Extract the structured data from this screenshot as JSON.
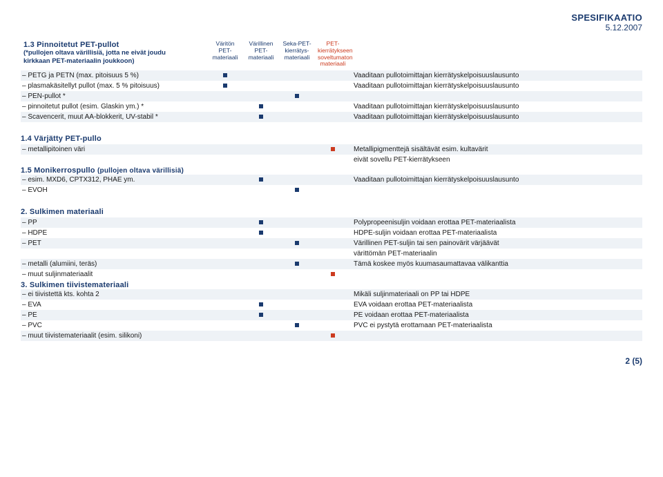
{
  "header": {
    "title": "SPESIFIKAATIO",
    "date": "5.12.2007"
  },
  "colors": {
    "blue": "#1a3a6e",
    "red": "#cc3b1f",
    "stripe": "#eef2f6",
    "bg": "#ffffff"
  },
  "column_headers": {
    "col1": "Väritön\nPET-\nmateriaali",
    "col2": "Värillinen\nPET-\nmateriaali",
    "col3": "Seka-PET-\nkierrätys-\nmateriaali",
    "col4": "PET-\nkierrätykseen\nsoveltumaton\nmateriaali"
  },
  "section13": {
    "title": "1.3 Pinnoitetut PET-pullot",
    "desc_line1": "(*pullojen oltava värillisiä, jotta ne eivät joudu",
    "desc_line2": "kirkkaan PET-materiaalin joukkoon)",
    "rows": [
      {
        "label": "– PETG ja PETN (max. pitoisuus 5 %)",
        "mark_col": 1,
        "mark_color": "blue",
        "note": "Vaaditaan pullotoimittajan kierrätyskelpoisuuslausunto"
      },
      {
        "label": "– plasmakäsitellyt pullot (max. 5 % pitoisuus)",
        "mark_col": 1,
        "mark_color": "blue",
        "note": "Vaaditaan pullotoimittajan kierrätyskelpoisuuslausunto"
      },
      {
        "label": "– PEN-pullot *",
        "mark_col": 3,
        "mark_color": "blue",
        "note": ""
      },
      {
        "label": "– pinnoitetut pullot (esim. Glaskin ym.) *",
        "mark_col": 2,
        "mark_color": "blue",
        "note": "Vaaditaan pullotoimittajan kierrätyskelpoisuuslausunto"
      },
      {
        "label": "– Scavencerit, muut AA-blokkerit, UV-stabil *",
        "mark_col": 2,
        "mark_color": "blue",
        "note": "Vaaditaan pullotoimittajan kierrätyskelpoisuuslausunto"
      }
    ]
  },
  "section14": {
    "title": "1.4 Värjätty PET-pullo",
    "rows": [
      {
        "label": "– metallipitoinen väri",
        "mark_col": 4,
        "mark_color": "red",
        "note": "Metallipigmenttejä sisältävät esim. kultavärit"
      },
      {
        "label": "",
        "note": "eivät sovellu PET-kierrätykseen"
      }
    ]
  },
  "section15": {
    "title": "1.5 Monikerrospullo",
    "sub": "(pullojen oltava värillisiä)",
    "rows": [
      {
        "label": "– esim. MXD6, CPTX312, PHAE ym.",
        "mark_col": 2,
        "mark_color": "blue",
        "note": "Vaaditaan pullotoimittajan kierrätyskelpoisuuslausunto"
      },
      {
        "label": "– EVOH",
        "mark_col": 3,
        "mark_color": "blue",
        "note": ""
      }
    ]
  },
  "section2": {
    "title": "2. Sulkimen materiaali",
    "rows": [
      {
        "label": "– PP",
        "mark_col": 2,
        "mark_color": "blue",
        "note": "Polypropeenisuljin voidaan erottaa PET-materiaalista"
      },
      {
        "label": "– HDPE",
        "mark_col": 2,
        "mark_color": "blue",
        "note": "HDPE-suljin voidaan erottaa PET-materiaalista"
      },
      {
        "label": "– PET",
        "mark_col": 3,
        "mark_color": "blue",
        "note": "Värillinen PET-suljin tai sen painovärit värjäävät"
      },
      {
        "label": "",
        "note": "värittömän PET-materiaalin"
      },
      {
        "label": "– metalli (alumiini, teräs)",
        "mark_col": 3,
        "mark_color": "blue",
        "note": "Tämä koskee myös kuumasaumattavaa välikanttia"
      },
      {
        "label": "– muut suljinmateriaalit",
        "mark_col": 4,
        "mark_color": "red",
        "note": ""
      }
    ]
  },
  "section3": {
    "title": "3. Sulkimen tiivistemateriaali",
    "rows": [
      {
        "label": "– ei tiivistettä kts. kohta 2",
        "note": "Mikäli suljinmateriaali on PP tai HDPE"
      },
      {
        "label": "– EVA",
        "mark_col": 2,
        "mark_color": "blue",
        "note": "EVA voidaan erottaa PET-materiaalista"
      },
      {
        "label": "– PE",
        "mark_col": 2,
        "mark_color": "blue",
        "note": "PE voidaan erottaa PET-materiaalista"
      },
      {
        "label": "– PVC",
        "mark_col": 3,
        "mark_color": "blue",
        "note": "PVC ei pystytä erottamaan PET-materiaalista"
      },
      {
        "label": "– muut tiivistemateriaalit (esim. silikoni)",
        "mark_col": 4,
        "mark_color": "red",
        "note": ""
      }
    ]
  },
  "pagenum": "2 (5)"
}
